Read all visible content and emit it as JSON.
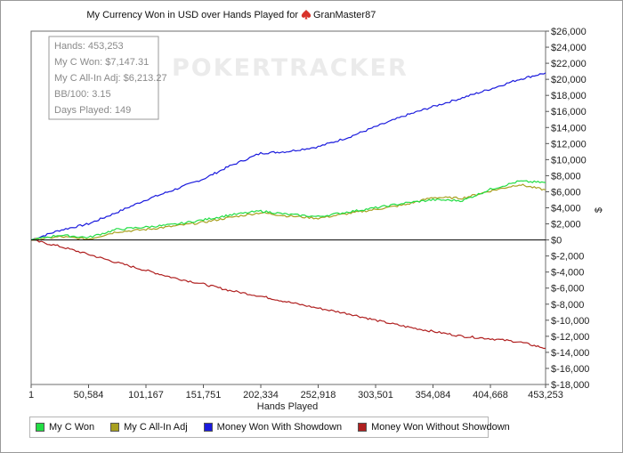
{
  "chart_data": {
    "type": "line",
    "title": "My Currency Won in USD over Hands Played for",
    "player": "GranMaster87",
    "watermark": "POKERTRACKER",
    "xlabel": "Hands Played",
    "ylabel": "$",
    "xlim": [
      1,
      453253
    ],
    "ylim": [
      -18000,
      26000
    ],
    "x_ticks": [
      1,
      50584,
      101167,
      151751,
      202334,
      252918,
      303501,
      354084,
      404668,
      453253
    ],
    "x_tick_labels": [
      "1",
      "50,584",
      "101,167",
      "151,751",
      "202,334",
      "252,918",
      "303,501",
      "354,084",
      "404,668",
      "453,253"
    ],
    "y_ticks": [
      -18000,
      -16000,
      -14000,
      -12000,
      -10000,
      -8000,
      -6000,
      -4000,
      -2000,
      0,
      2000,
      4000,
      6000,
      8000,
      10000,
      12000,
      14000,
      16000,
      18000,
      20000,
      22000,
      24000,
      26000
    ],
    "y_tick_labels": [
      "$-18,000",
      "$-16,000",
      "$-14,000",
      "$-12,000",
      "$-10,000",
      "$-8,000",
      "$-6,000",
      "$-4,000",
      "$-2,000",
      "$0",
      "$2,000",
      "$4,000",
      "$6,000",
      "$8,000",
      "$10,000",
      "$12,000",
      "$14,000",
      "$16,000",
      "$18,000",
      "$20,000",
      "$22,000",
      "$24,000",
      "$26,000"
    ],
    "x": [
      1,
      25000,
      50584,
      75000,
      101167,
      125000,
      151751,
      175000,
      202334,
      225000,
      252918,
      280000,
      303501,
      330000,
      354084,
      380000,
      404668,
      430000,
      453253
    ],
    "series": [
      {
        "name": "My C Won",
        "color": "#22dd44",
        "values": [
          0,
          600,
          300,
          1300,
          1600,
          1900,
          2500,
          3100,
          3600,
          3200,
          2900,
          3500,
          4000,
          4600,
          5000,
          4900,
          6300,
          7300,
          7147
        ]
      },
      {
        "name": "My C All-In Adj",
        "color": "#a8a020",
        "values": [
          0,
          400,
          100,
          1000,
          1300,
          1700,
          2200,
          2800,
          3400,
          3000,
          2700,
          3300,
          3800,
          4400,
          5300,
          5200,
          6100,
          6900,
          6213
        ]
      },
      {
        "name": "Money Won With Showdown",
        "color": "#1a1add",
        "values": [
          0,
          1200,
          2000,
          3400,
          5000,
          6200,
          7600,
          9200,
          10800,
          11000,
          11600,
          12800,
          14100,
          15500,
          16600,
          17700,
          18800,
          20000,
          20800
        ]
      },
      {
        "name": "Money Won Without Showdown",
        "color": "#b02020",
        "values": [
          0,
          -800,
          -1800,
          -2800,
          -3800,
          -4700,
          -5500,
          -6300,
          -7000,
          -7700,
          -8500,
          -9200,
          -10000,
          -10800,
          -11400,
          -12000,
          -12300,
          -12700,
          -13500
        ]
      }
    ],
    "stats_box": {
      "hands": "Hands: 453,253",
      "won": "My C Won: $7,147.31",
      "allin": "My C All-In Adj: $6,213.27",
      "bb100": "BB/100: 3.15",
      "days": "Days Played: 149"
    },
    "legend_position": "bottom-left"
  }
}
